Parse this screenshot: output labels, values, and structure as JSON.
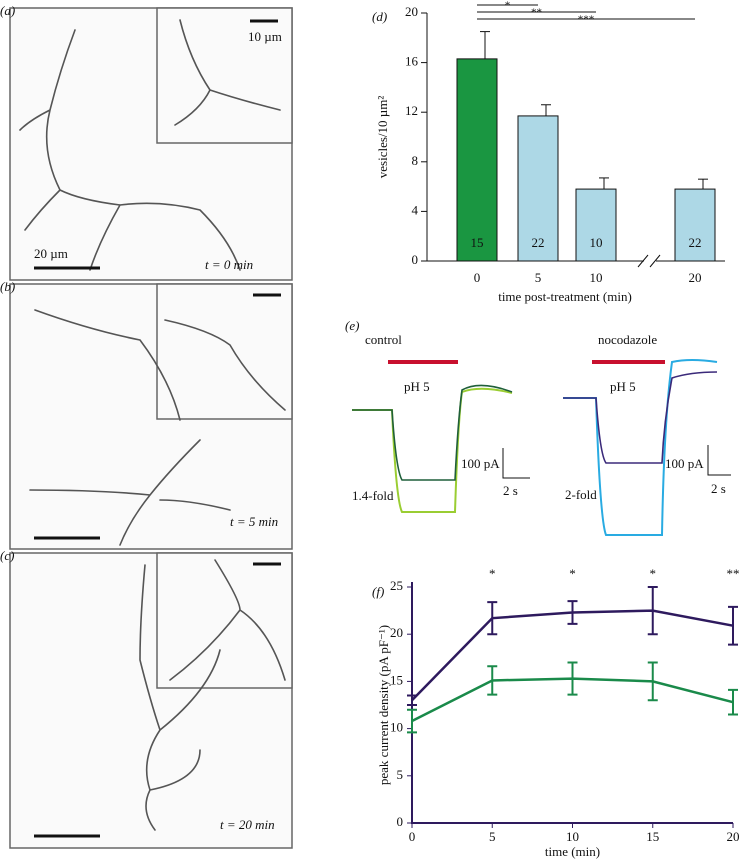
{
  "image_panels": [
    {
      "label": "(a)",
      "inset_scale": "10 µm",
      "scale": "20 µm",
      "time": "t = 0 min"
    },
    {
      "label": "(b)",
      "time": "t = 5 min"
    },
    {
      "label": "(c)",
      "time": "t = 20 min"
    }
  ],
  "chart_data": [
    {
      "type": "bar",
      "panel_label": "(d)",
      "x_label": "time post-treatment (min)",
      "y_label": "vesicles/10 µm²",
      "categories": [
        "0",
        "5",
        "10",
        "20"
      ],
      "values": [
        16.3,
        11.7,
        5.8,
        5.8
      ],
      "errors": [
        2.2,
        0.9,
        0.9,
        0.8
      ],
      "counts": [
        15,
        22,
        10,
        22
      ],
      "colors": [
        "#1a9641",
        "#add8e6",
        "#add8e6",
        "#add8e6"
      ],
      "significance": [
        "*",
        "**",
        "***"
      ],
      "ylim": [
        0,
        20
      ],
      "yticks": [
        0,
        4,
        8,
        12,
        16,
        20
      ]
    },
    {
      "type": "line",
      "panel_label": "(f)",
      "x_label": "time (min)",
      "y_label": "peak current density (pA pF⁻¹)",
      "x": [
        0,
        5,
        10,
        15,
        20
      ],
      "xlim": [
        0,
        20
      ],
      "xticks": [
        0,
        5,
        10,
        15,
        20
      ],
      "ylim": [
        0,
        25
      ],
      "yticks": [
        0,
        5,
        10,
        15,
        20,
        25
      ],
      "series": [
        {
          "color": "#2e1a5e",
          "values": [
            13,
            21.7,
            22.3,
            22.5,
            20.9
          ],
          "errors": [
            0.5,
            1.7,
            1.2,
            2.5,
            2.0
          ]
        },
        {
          "color": "#1a8a4a",
          "values": [
            10.8,
            15.1,
            15.3,
            15.0,
            12.8
          ],
          "errors": [
            1.2,
            1.5,
            1.7,
            2.0,
            1.3
          ]
        }
      ],
      "annotations": [
        {
          "x": 5,
          "text": "*"
        },
        {
          "x": 10,
          "text": "*"
        },
        {
          "x": 15,
          "text": "*"
        },
        {
          "x": 20,
          "text": "**"
        }
      ]
    }
  ],
  "trace_panel": {
    "label": "(e)",
    "control": "control",
    "nocodazole": "nocodazole",
    "ph": "pH 5",
    "ph2": "pH 5",
    "current_scale": "100 pA",
    "current_scale2": "100 pA",
    "time_scale": "2 s",
    "time_scale2": "2 s",
    "fold_control": "1.4-fold",
    "fold_nocodazole": "2-fold"
  }
}
